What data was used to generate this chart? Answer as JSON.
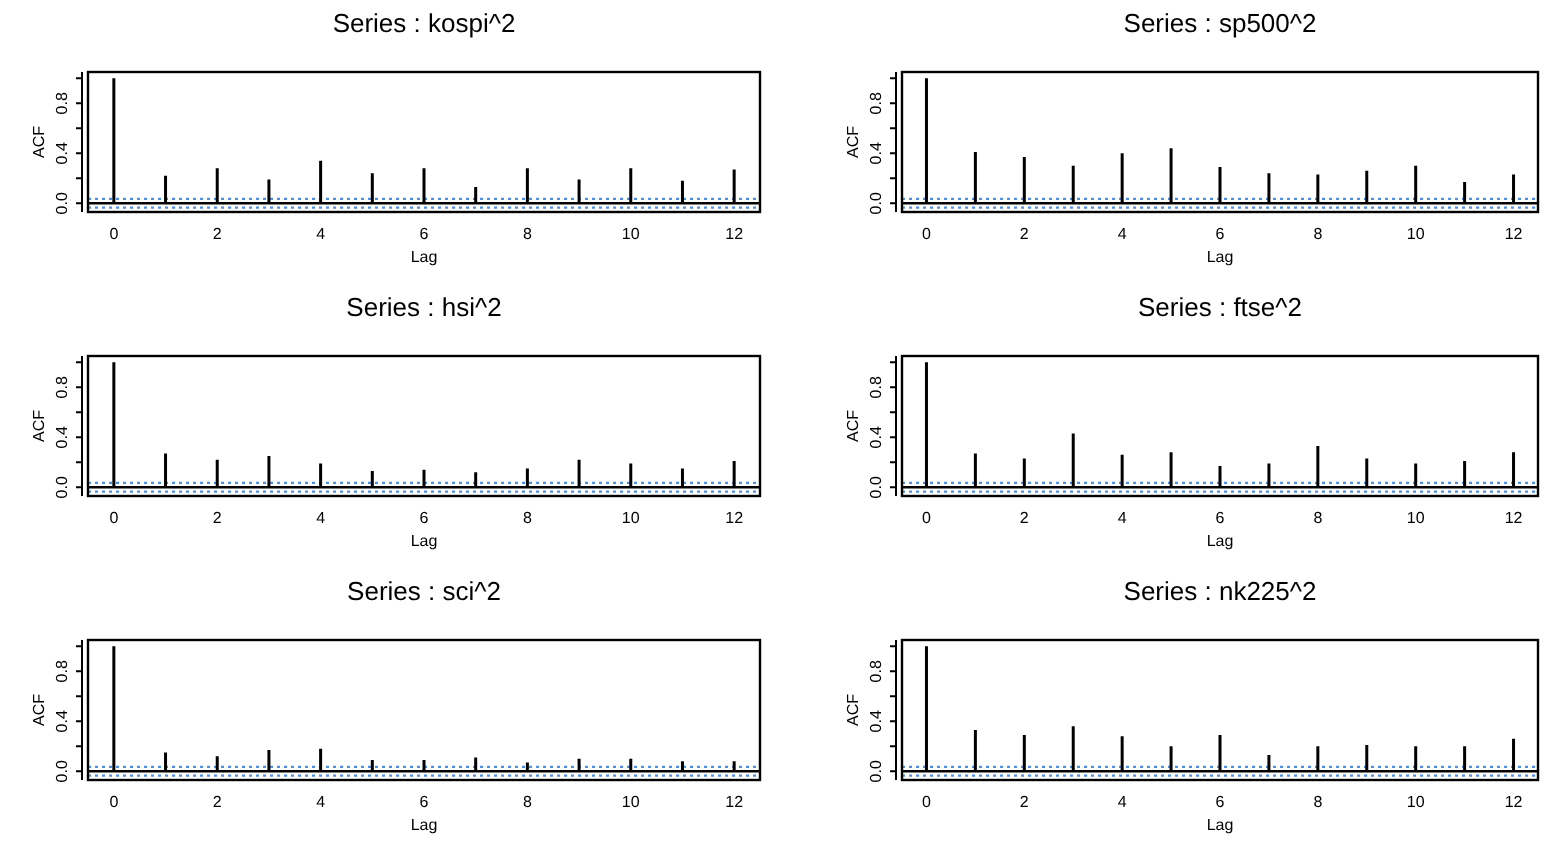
{
  "chart_data": [
    {
      "type": "bar",
      "title": "Series : kospi^2",
      "xlabel": "Lag",
      "ylabel": "ACF",
      "x": [
        0,
        1,
        2,
        3,
        4,
        5,
        6,
        7,
        8,
        9,
        10,
        11,
        12
      ],
      "values": [
        1.0,
        0.22,
        0.28,
        0.19,
        0.34,
        0.24,
        0.28,
        0.13,
        0.28,
        0.19,
        0.28,
        0.18,
        0.27
      ],
      "color": "#000000",
      "xlim": [
        -0.5,
        12.5
      ],
      "ylim": [
        -0.07,
        1.05
      ],
      "xticks": [
        0,
        2,
        4,
        6,
        8,
        10,
        12
      ],
      "yticks": [
        {
          "value": 0,
          "label": "0.0"
        },
        {
          "value": 0.2,
          "label": null
        },
        {
          "value": 0.4,
          "label": "0.4"
        },
        {
          "value": 0.6,
          "label": null
        },
        {
          "value": 0.8,
          "label": "0.8"
        },
        {
          "value": 1.0,
          "label": null
        }
      ],
      "ref_lines": [
        {
          "axis": "y",
          "value": 0,
          "color": "#000000",
          "line_style": "solid"
        },
        {
          "axis": "y",
          "value": 0.035,
          "color": "#4f8fe0",
          "line_style": "dotted"
        },
        {
          "axis": "y",
          "value": -0.035,
          "color": "#4f8fe0",
          "line_style": "dotted"
        }
      ]
    },
    {
      "type": "bar",
      "title": "Series : sp500^2",
      "xlabel": "Lag",
      "ylabel": "ACF",
      "x": [
        0,
        1,
        2,
        3,
        4,
        5,
        6,
        7,
        8,
        9,
        10,
        11,
        12
      ],
      "values": [
        1.0,
        0.41,
        0.37,
        0.3,
        0.4,
        0.44,
        0.29,
        0.24,
        0.23,
        0.26,
        0.3,
        0.17,
        0.23
      ],
      "color": "#000000",
      "xlim": [
        -0.5,
        12.5
      ],
      "ylim": [
        -0.07,
        1.05
      ],
      "xticks": [
        0,
        2,
        4,
        6,
        8,
        10,
        12
      ],
      "yticks": [
        {
          "value": 0,
          "label": "0.0"
        },
        {
          "value": 0.2,
          "label": null
        },
        {
          "value": 0.4,
          "label": "0.4"
        },
        {
          "value": 0.6,
          "label": null
        },
        {
          "value": 0.8,
          "label": "0.8"
        },
        {
          "value": 1.0,
          "label": null
        }
      ],
      "ref_lines": [
        {
          "axis": "y",
          "value": 0,
          "color": "#000000",
          "line_style": "solid"
        },
        {
          "axis": "y",
          "value": 0.035,
          "color": "#4f8fe0",
          "line_style": "dotted"
        },
        {
          "axis": "y",
          "value": -0.035,
          "color": "#4f8fe0",
          "line_style": "dotted"
        }
      ]
    },
    {
      "type": "bar",
      "title": "Series : hsi^2",
      "xlabel": "Lag",
      "ylabel": "ACF",
      "x": [
        0,
        1,
        2,
        3,
        4,
        5,
        6,
        7,
        8,
        9,
        10,
        11,
        12
      ],
      "values": [
        1.0,
        0.27,
        0.22,
        0.25,
        0.19,
        0.13,
        0.14,
        0.12,
        0.15,
        0.22,
        0.19,
        0.15,
        0.21
      ],
      "color": "#000000",
      "xlim": [
        -0.5,
        12.5
      ],
      "ylim": [
        -0.07,
        1.05
      ],
      "xticks": [
        0,
        2,
        4,
        6,
        8,
        10,
        12
      ],
      "yticks": [
        {
          "value": 0,
          "label": "0.0"
        },
        {
          "value": 0.2,
          "label": null
        },
        {
          "value": 0.4,
          "label": "0.4"
        },
        {
          "value": 0.6,
          "label": null
        },
        {
          "value": 0.8,
          "label": "0.8"
        },
        {
          "value": 1.0,
          "label": null
        }
      ],
      "ref_lines": [
        {
          "axis": "y",
          "value": 0,
          "color": "#000000",
          "line_style": "solid"
        },
        {
          "axis": "y",
          "value": 0.035,
          "color": "#4f8fe0",
          "line_style": "dotted"
        },
        {
          "axis": "y",
          "value": -0.035,
          "color": "#4f8fe0",
          "line_style": "dotted"
        }
      ]
    },
    {
      "type": "bar",
      "title": "Series : ftse^2",
      "xlabel": "Lag",
      "ylabel": "ACF",
      "x": [
        0,
        1,
        2,
        3,
        4,
        5,
        6,
        7,
        8,
        9,
        10,
        11,
        12
      ],
      "values": [
        1.0,
        0.27,
        0.23,
        0.43,
        0.26,
        0.28,
        0.17,
        0.19,
        0.33,
        0.23,
        0.19,
        0.21,
        0.28
      ],
      "color": "#000000",
      "xlim": [
        -0.5,
        12.5
      ],
      "ylim": [
        -0.07,
        1.05
      ],
      "xticks": [
        0,
        2,
        4,
        6,
        8,
        10,
        12
      ],
      "yticks": [
        {
          "value": 0,
          "label": "0.0"
        },
        {
          "value": 0.2,
          "label": null
        },
        {
          "value": 0.4,
          "label": "0.4"
        },
        {
          "value": 0.6,
          "label": null
        },
        {
          "value": 0.8,
          "label": "0.8"
        },
        {
          "value": 1.0,
          "label": null
        }
      ],
      "ref_lines": [
        {
          "axis": "y",
          "value": 0,
          "color": "#000000",
          "line_style": "solid"
        },
        {
          "axis": "y",
          "value": 0.035,
          "color": "#4f8fe0",
          "line_style": "dotted"
        },
        {
          "axis": "y",
          "value": -0.035,
          "color": "#4f8fe0",
          "line_style": "dotted"
        }
      ]
    },
    {
      "type": "bar",
      "title": "Series : sci^2",
      "xlabel": "Lag",
      "ylabel": "ACF",
      "x": [
        0,
        1,
        2,
        3,
        4,
        5,
        6,
        7,
        8,
        9,
        10,
        11,
        12
      ],
      "values": [
        1.0,
        0.15,
        0.12,
        0.17,
        0.18,
        0.09,
        0.09,
        0.11,
        0.07,
        0.1,
        0.1,
        0.08,
        0.08
      ],
      "color": "#000000",
      "xlim": [
        -0.5,
        12.5
      ],
      "ylim": [
        -0.07,
        1.05
      ],
      "xticks": [
        0,
        2,
        4,
        6,
        8,
        10,
        12
      ],
      "yticks": [
        {
          "value": 0,
          "label": "0.0"
        },
        {
          "value": 0.2,
          "label": null
        },
        {
          "value": 0.4,
          "label": "0.4"
        },
        {
          "value": 0.6,
          "label": null
        },
        {
          "value": 0.8,
          "label": "0.8"
        },
        {
          "value": 1.0,
          "label": null
        }
      ],
      "ref_lines": [
        {
          "axis": "y",
          "value": 0,
          "color": "#000000",
          "line_style": "solid"
        },
        {
          "axis": "y",
          "value": 0.035,
          "color": "#4f8fe0",
          "line_style": "dotted"
        },
        {
          "axis": "y",
          "value": -0.035,
          "color": "#4f8fe0",
          "line_style": "dotted"
        }
      ]
    },
    {
      "type": "bar",
      "title": "Series : nk225^2",
      "xlabel": "Lag",
      "ylabel": "ACF",
      "x": [
        0,
        1,
        2,
        3,
        4,
        5,
        6,
        7,
        8,
        9,
        10,
        11,
        12
      ],
      "values": [
        1.0,
        0.33,
        0.29,
        0.36,
        0.28,
        0.2,
        0.29,
        0.13,
        0.2,
        0.21,
        0.2,
        0.2,
        0.26
      ],
      "color": "#000000",
      "xlim": [
        -0.5,
        12.5
      ],
      "ylim": [
        -0.07,
        1.05
      ],
      "xticks": [
        0,
        2,
        4,
        6,
        8,
        10,
        12
      ],
      "yticks": [
        {
          "value": 0,
          "label": "0.0"
        },
        {
          "value": 0.2,
          "label": null
        },
        {
          "value": 0.4,
          "label": "0.4"
        },
        {
          "value": 0.6,
          "label": null
        },
        {
          "value": 0.8,
          "label": "0.8"
        },
        {
          "value": 1.0,
          "label": null
        }
      ],
      "ref_lines": [
        {
          "axis": "y",
          "value": 0,
          "color": "#000000",
          "line_style": "solid"
        },
        {
          "axis": "y",
          "value": 0.035,
          "color": "#4f8fe0",
          "line_style": "dotted"
        },
        {
          "axis": "y",
          "value": -0.035,
          "color": "#4f8fe0",
          "line_style": "dotted"
        }
      ]
    }
  ]
}
